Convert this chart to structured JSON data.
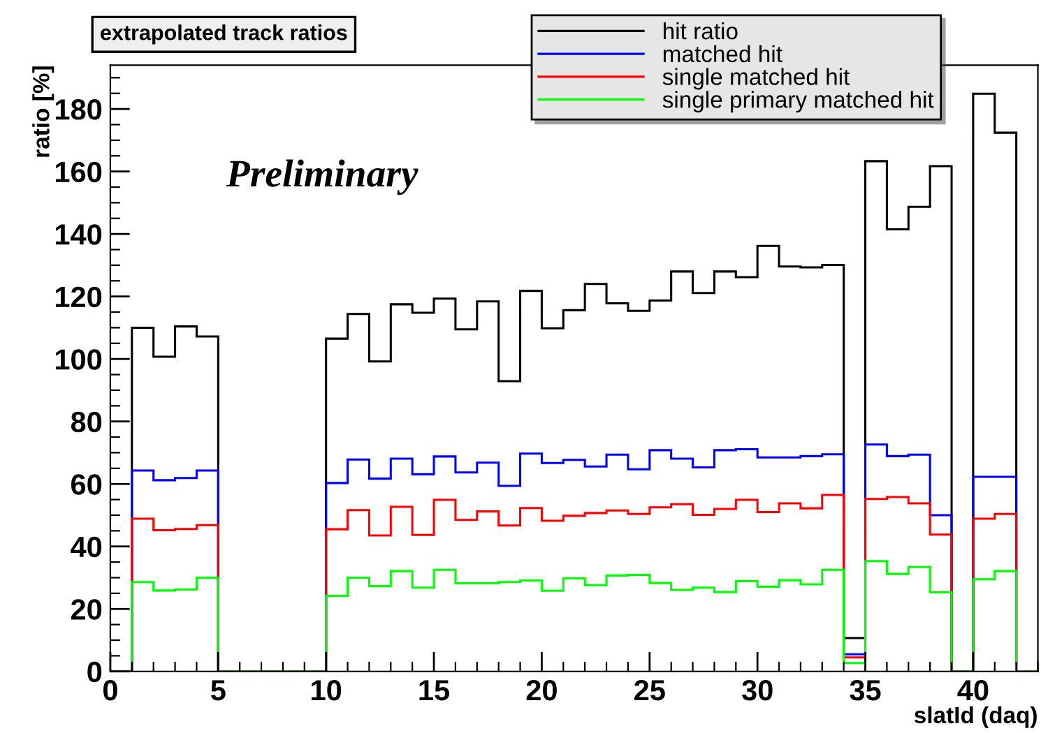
{
  "chart_data": {
    "type": "histogram",
    "title": "extrapolated track ratios",
    "xlabel": "slatId (daq)",
    "ylabel": "ratio [%]",
    "annotations": [
      "Preliminary"
    ],
    "bins": [
      0,
      1,
      2,
      3,
      4,
      5,
      6,
      7,
      8,
      9,
      10,
      11,
      12,
      13,
      14,
      15,
      16,
      17,
      18,
      19,
      20,
      21,
      22,
      23,
      24,
      25,
      26,
      27,
      28,
      29,
      30,
      31,
      32,
      33,
      34,
      35,
      36,
      37,
      38,
      39,
      40,
      41,
      42,
      43
    ],
    "series": [
      {
        "name": "hit ratio",
        "color": "#000000",
        "values": [
          0,
          110,
          100.7,
          110.4,
          107.2,
          0,
          0,
          0,
          0,
          0,
          106.5,
          114.4,
          99.2,
          117.5,
          114.8,
          119.3,
          109.5,
          118.4,
          92.9,
          121.8,
          109.8,
          115.6,
          124,
          117.8,
          115.4,
          118.7,
          128,
          121.1,
          128,
          126.2,
          136.2,
          129.6,
          129.3,
          130.1,
          10.7,
          163.3,
          141.5,
          148.7,
          161.7,
          0,
          184.9,
          172.4,
          0
        ]
      },
      {
        "name": "matched hit",
        "color": "#0000ff",
        "values": [
          0,
          64.3,
          61.2,
          61.9,
          64.3,
          0,
          0,
          0,
          0,
          0,
          60.3,
          67.8,
          61.7,
          68.1,
          63.1,
          68.8,
          63.7,
          66.8,
          59.4,
          69.7,
          66.7,
          67.7,
          65.6,
          69.4,
          64.7,
          70.8,
          68.1,
          65.3,
          70.8,
          71.1,
          68.5,
          68.5,
          68.9,
          69.5,
          5.5,
          72.6,
          68.9,
          69.4,
          50.0,
          0,
          62.3,
          62.3,
          0
        ]
      },
      {
        "name": "single matched hit",
        "color": "#ff0000",
        "values": [
          0,
          48.9,
          45.2,
          45.6,
          46.8,
          0,
          0,
          0,
          0,
          0,
          45.5,
          51.6,
          43.5,
          52.7,
          43.7,
          54.9,
          48.5,
          51.2,
          46.7,
          52.3,
          48.2,
          49.8,
          50.7,
          51.5,
          50.4,
          52.5,
          53.5,
          50.1,
          52.0,
          54.9,
          51.0,
          53.8,
          52.2,
          56.5,
          4.5,
          55.2,
          55.8,
          53.8,
          43.8,
          0,
          48.9,
          50.4,
          0
        ]
      },
      {
        "name": "single primary matched hit",
        "color": "#00ff00",
        "values": [
          0,
          28.6,
          25.9,
          26.2,
          30.0,
          0,
          0,
          0,
          0,
          0,
          24.2,
          30.0,
          27.3,
          32.1,
          26.8,
          32.5,
          28.2,
          28.2,
          28.6,
          29.1,
          25.8,
          29.8,
          27.6,
          30.7,
          30.9,
          28.3,
          26.1,
          26.8,
          25.4,
          28.9,
          27.1,
          29.2,
          27.9,
          32.5,
          2.7,
          35.3,
          31.2,
          33.4,
          25.3,
          0,
          29.5,
          32.1,
          0
        ]
      }
    ],
    "xlim": [
      0,
      43
    ],
    "xticks": [
      0,
      5,
      10,
      15,
      20,
      25,
      30,
      35,
      40
    ],
    "ylim": [
      0,
      194
    ],
    "yticks": [
      0,
      20,
      40,
      60,
      80,
      100,
      120,
      140,
      160,
      180
    ],
    "grid": false,
    "legend": "top right"
  }
}
